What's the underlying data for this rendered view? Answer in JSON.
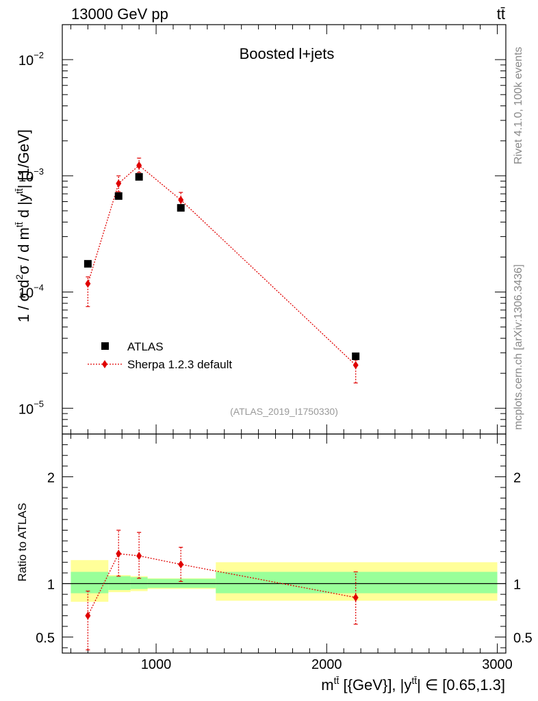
{
  "chart_data": {
    "type": "scatter",
    "header": {
      "left": "13000 GeV pp",
      "right": "tt̄"
    },
    "title": "Boosted l+jets",
    "analysis_label": "(ATLAS_2019_I1750330)",
    "side_labels": {
      "rivet": "Rivet 4.1.0,  100k events",
      "mcplots": "mcplots.cern.ch [arXiv:1306.3436]"
    },
    "xlabel": "m^{tt̄} [{GeV}], |y^{tt̄}| ∈ [0.65,1.3]",
    "xlabel_parts": {
      "m": "m",
      "tt": "tt̄",
      "unit": " [{GeV}], |y",
      "range": "| ∈ [0.65,1.3]"
    },
    "ylabel": "1 / σ d²σ / d m^{tt̄} d |y^{tt̄}| [1/GeV]",
    "ylabel_parts": {
      "a": "1 / σ d",
      "sup2": "2",
      "b": "σ / d m",
      "tt": "tt̄",
      "c": " d |y",
      "d": "| [1/GeV]"
    },
    "ratio_ylabel": "Ratio to ATLAS",
    "xlim": [
      450,
      3050
    ],
    "ylim_log": [
      6e-06,
      0.02
    ],
    "ratio_ylim": [
      0.35,
      2.4
    ],
    "x_ticks": [
      {
        "value": 1000,
        "label": "1000"
      },
      {
        "value": 2000,
        "label": "2000"
      },
      {
        "value": 3000,
        "label": "3000"
      }
    ],
    "y_ticks": [
      {
        "value": 1e-05,
        "base": "10",
        "exp": "−5"
      },
      {
        "value": 0.0001,
        "base": "10",
        "exp": "−4"
      },
      {
        "value": 0.001,
        "base": "10",
        "exp": "−3"
      },
      {
        "value": 0.01,
        "base": "10",
        "exp": "−2"
      }
    ],
    "ratio_ticks": [
      {
        "value": 0.5,
        "label": "0.5"
      },
      {
        "value": 1,
        "label": "1"
      },
      {
        "value": 2,
        "label": "2"
      }
    ],
    "legend": [
      {
        "name": "ATLAS",
        "marker": "square",
        "color": "#000000"
      },
      {
        "name": "Sherpa 1.2.3 default",
        "marker": "diamond",
        "color": "#e00000"
      }
    ],
    "bins": [
      {
        "lo": 500,
        "hi": 720
      },
      {
        "lo": 720,
        "hi": 850
      },
      {
        "lo": 850,
        "hi": 950
      },
      {
        "lo": 950,
        "hi": 1350
      },
      {
        "lo": 1350,
        "hi": 3000
      }
    ],
    "series": [
      {
        "name": "ATLAS",
        "x": [
          600,
          780,
          900,
          1145,
          2170
        ],
        "y": [
          0.000175,
          0.00067,
          0.00098,
          0.00053,
          2.8e-05
        ]
      },
      {
        "name": "Sherpa 1.2.3 default",
        "x": [
          600,
          780,
          900,
          1145,
          2170
        ],
        "y": [
          0.000118,
          0.00086,
          0.00123,
          0.00062,
          2.35e-05
        ],
        "y_err_lo": [
          7.5e-05,
          0.00073,
          0.00107,
          0.00053,
          1.65e-05
        ],
        "y_err_hi": [
          0.000135,
          0.001,
          0.00142,
          0.00072,
          2.6e-05
        ],
        "ratio": [
          0.7,
          1.28,
          1.26,
          1.18,
          0.87
        ],
        "ratio_err_lo": [
          0.38,
          1.07,
          1.05,
          1.02,
          0.62
        ],
        "ratio_err_hi": [
          0.93,
          1.5,
          1.48,
          1.34,
          1.11
        ]
      }
    ],
    "uncertainty_bands": {
      "inner_color": "#99ff99",
      "outer_color": "#ffff99",
      "inner": [
        [
          0.91,
          1.11
        ],
        [
          0.94,
          1.07
        ],
        [
          0.95,
          1.06
        ],
        [
          0.96,
          1.045
        ],
        [
          0.91,
          1.11
        ]
      ],
      "outer": [
        [
          0.83,
          1.22
        ],
        [
          0.92,
          1.08
        ],
        [
          0.93,
          1.07
        ],
        [
          0.95,
          1.05
        ],
        [
          0.84,
          1.2
        ]
      ]
    }
  }
}
